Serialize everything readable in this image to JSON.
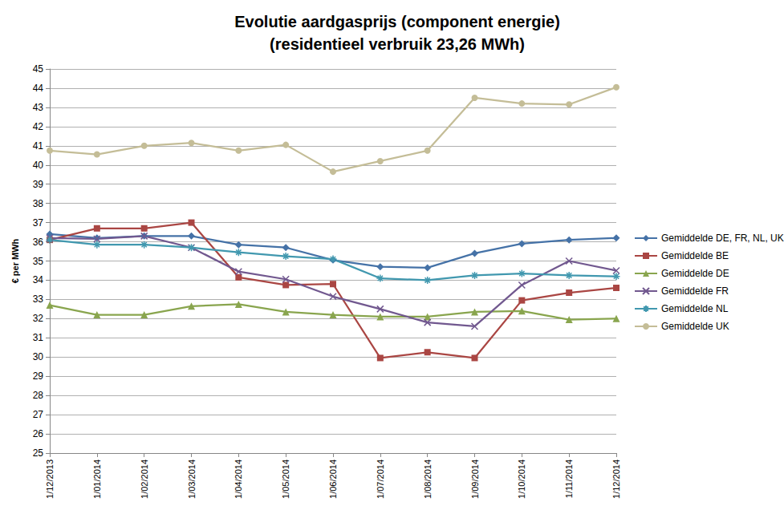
{
  "chart_data": {
    "type": "line",
    "title": "Evolutie aardgasprijs (component energie)",
    "subtitle": "(residentieel verbruik 23,26 MWh)",
    "y_label": "€ per MWh",
    "categories": [
      "1/12/2013",
      "1/01/2014",
      "1/02/2014",
      "1/03/2014",
      "1/04/2014",
      "1/05/2014",
      "1/06/2014",
      "1/07/2014",
      "1/08/2014",
      "1/09/2014",
      "1/10/2014",
      "1/11/2014",
      "1/12/2014"
    ],
    "series": [
      {
        "name": "Gemiddelde DE, FR, NL, UK",
        "color": "#4572a7",
        "marker": "diamond",
        "values": [
          36.4,
          36.2,
          36.3,
          36.3,
          35.85,
          35.7,
          35.05,
          34.7,
          34.65,
          35.4,
          35.9,
          36.1,
          36.2
        ]
      },
      {
        "name": "Gemiddelde BE",
        "color": "#aa4643",
        "marker": "square",
        "values": [
          36.1,
          36.7,
          36.7,
          37.0,
          34.15,
          33.75,
          33.8,
          29.95,
          30.25,
          29.95,
          32.95,
          33.35,
          33.6
        ]
      },
      {
        "name": "Gemiddelde DE",
        "color": "#89a54e",
        "marker": "triangle",
        "values": [
          32.7,
          32.2,
          32.2,
          32.65,
          32.75,
          32.35,
          32.2,
          32.1,
          32.1,
          32.35,
          32.4,
          31.95,
          32.0
        ]
      },
      {
        "name": "Gemiddelde FR",
        "color": "#71588f",
        "marker": "x",
        "values": [
          36.2,
          36.15,
          36.3,
          35.7,
          34.45,
          34.05,
          33.15,
          32.5,
          31.8,
          31.6,
          33.75,
          35.0,
          34.5
        ]
      },
      {
        "name": "Gemiddelde NL",
        "color": "#4198af",
        "marker": "star",
        "values": [
          36.1,
          35.85,
          35.85,
          35.7,
          35.45,
          35.25,
          35.1,
          34.1,
          34.0,
          34.25,
          34.35,
          34.25,
          34.2
        ]
      },
      {
        "name": "Gemiddelde UK",
        "color": "#c4bd97",
        "marker": "circle",
        "values": [
          40.75,
          40.55,
          41.0,
          41.15,
          40.75,
          41.05,
          39.65,
          40.2,
          40.75,
          43.5,
          43.2,
          43.15,
          44.05
        ]
      }
    ],
    "ylim": [
      25,
      45
    ],
    "yticks": [
      25,
      26,
      27,
      28,
      29,
      30,
      31,
      32,
      33,
      34,
      35,
      36,
      37,
      38,
      39,
      40,
      41,
      42,
      43,
      44,
      45
    ],
    "grid": true,
    "legend": "right"
  }
}
